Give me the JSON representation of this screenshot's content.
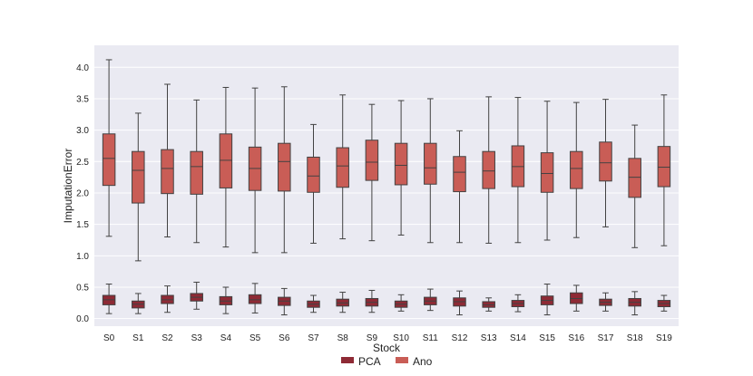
{
  "chart_data": {
    "type": "boxplot",
    "xlabel": "Stock",
    "ylabel": "ImputationError",
    "ylim": [
      -0.12,
      4.35
    ],
    "yticks": [
      0.0,
      0.5,
      1.0,
      1.5,
      2.0,
      2.5,
      3.0,
      3.5,
      4.0
    ],
    "ytick_labels": [
      "0.0",
      "0.5",
      "1.0",
      "1.5",
      "2.0",
      "2.5",
      "3.0",
      "3.5",
      "4.0"
    ],
    "grid": true,
    "legend_position": "bottom-center",
    "categories": [
      "S0",
      "S1",
      "S2",
      "S3",
      "S4",
      "S5",
      "S6",
      "S7",
      "S8",
      "S9",
      "S10",
      "S11",
      "S12",
      "S13",
      "S14",
      "S15",
      "S16",
      "S17",
      "S18",
      "S19"
    ],
    "series": [
      {
        "name": "PCA",
        "color": "#8e2a35",
        "boxes": [
          {
            "whislo": 0.08,
            "q1": 0.22,
            "med": 0.3,
            "q3": 0.37,
            "whishi": 0.55
          },
          {
            "whislo": 0.08,
            "q1": 0.17,
            "med": 0.23,
            "q3": 0.28,
            "whishi": 0.4
          },
          {
            "whislo": 0.1,
            "q1": 0.24,
            "med": 0.3,
            "q3": 0.37,
            "whishi": 0.52
          },
          {
            "whislo": 0.15,
            "q1": 0.28,
            "med": 0.34,
            "q3": 0.4,
            "whishi": 0.58
          },
          {
            "whislo": 0.08,
            "q1": 0.22,
            "med": 0.28,
            "q3": 0.35,
            "whishi": 0.5
          },
          {
            "whislo": 0.09,
            "q1": 0.24,
            "med": 0.3,
            "q3": 0.38,
            "whishi": 0.56
          },
          {
            "whislo": 0.06,
            "q1": 0.21,
            "med": 0.28,
            "q3": 0.34,
            "whishi": 0.48
          },
          {
            "whislo": 0.1,
            "q1": 0.18,
            "med": 0.23,
            "q3": 0.28,
            "whishi": 0.37
          },
          {
            "whislo": 0.1,
            "q1": 0.2,
            "med": 0.25,
            "q3": 0.31,
            "whishi": 0.42
          },
          {
            "whislo": 0.1,
            "q1": 0.2,
            "med": 0.26,
            "q3": 0.32,
            "whishi": 0.45
          },
          {
            "whislo": 0.12,
            "q1": 0.18,
            "med": 0.23,
            "q3": 0.28,
            "whishi": 0.38
          },
          {
            "whislo": 0.13,
            "q1": 0.22,
            "med": 0.28,
            "q3": 0.34,
            "whishi": 0.47
          },
          {
            "whislo": 0.06,
            "q1": 0.2,
            "med": 0.27,
            "q3": 0.33,
            "whishi": 0.44
          },
          {
            "whislo": 0.12,
            "q1": 0.18,
            "med": 0.22,
            "q3": 0.27,
            "whishi": 0.33
          },
          {
            "whislo": 0.11,
            "q1": 0.19,
            "med": 0.24,
            "q3": 0.29,
            "whishi": 0.38
          },
          {
            "whislo": 0.06,
            "q1": 0.22,
            "med": 0.29,
            "q3": 0.36,
            "whishi": 0.55
          },
          {
            "whislo": 0.12,
            "q1": 0.24,
            "med": 0.32,
            "q3": 0.41,
            "whishi": 0.53
          },
          {
            "whislo": 0.12,
            "q1": 0.21,
            "med": 0.26,
            "q3": 0.31,
            "whishi": 0.41
          },
          {
            "whislo": 0.06,
            "q1": 0.2,
            "med": 0.26,
            "q3": 0.32,
            "whishi": 0.43
          },
          {
            "whislo": 0.12,
            "q1": 0.19,
            "med": 0.24,
            "q3": 0.29,
            "whishi": 0.37
          }
        ]
      },
      {
        "name": "Ano",
        "color": "#c95d56",
        "boxes": [
          {
            "whislo": 1.31,
            "q1": 2.12,
            "med": 2.55,
            "q3": 2.94,
            "whishi": 4.12
          },
          {
            "whislo": 0.92,
            "q1": 1.84,
            "med": 2.36,
            "q3": 2.66,
            "whishi": 3.27
          },
          {
            "whislo": 1.3,
            "q1": 1.99,
            "med": 2.39,
            "q3": 2.69,
            "whishi": 3.73
          },
          {
            "whislo": 1.21,
            "q1": 1.98,
            "med": 2.42,
            "q3": 2.66,
            "whishi": 3.48
          },
          {
            "whislo": 1.14,
            "q1": 2.08,
            "med": 2.52,
            "q3": 2.94,
            "whishi": 3.68
          },
          {
            "whislo": 1.05,
            "q1": 2.04,
            "med": 2.39,
            "q3": 2.73,
            "whishi": 3.67
          },
          {
            "whislo": 1.05,
            "q1": 2.03,
            "med": 2.5,
            "q3": 2.79,
            "whishi": 3.69
          },
          {
            "whislo": 1.2,
            "q1": 2.01,
            "med": 2.27,
            "q3": 2.57,
            "whishi": 3.09
          },
          {
            "whislo": 1.27,
            "q1": 2.09,
            "med": 2.43,
            "q3": 2.72,
            "whishi": 3.56
          },
          {
            "whislo": 1.24,
            "q1": 2.2,
            "med": 2.49,
            "q3": 2.84,
            "whishi": 3.41
          },
          {
            "whislo": 1.33,
            "q1": 2.13,
            "med": 2.44,
            "q3": 2.79,
            "whishi": 3.47
          },
          {
            "whislo": 1.21,
            "q1": 2.14,
            "med": 2.4,
            "q3": 2.79,
            "whishi": 3.5
          },
          {
            "whislo": 1.21,
            "q1": 2.02,
            "med": 2.33,
            "q3": 2.58,
            "whishi": 2.99
          },
          {
            "whislo": 1.2,
            "q1": 2.07,
            "med": 2.35,
            "q3": 2.66,
            "whishi": 3.53
          },
          {
            "whislo": 1.21,
            "q1": 2.1,
            "med": 2.42,
            "q3": 2.75,
            "whishi": 3.52
          },
          {
            "whislo": 1.25,
            "q1": 2.01,
            "med": 2.31,
            "q3": 2.64,
            "whishi": 3.46
          },
          {
            "whislo": 1.29,
            "q1": 2.07,
            "med": 2.39,
            "q3": 2.66,
            "whishi": 3.44
          },
          {
            "whislo": 1.46,
            "q1": 2.19,
            "med": 2.48,
            "q3": 2.81,
            "whishi": 3.49
          },
          {
            "whislo": 1.13,
            "q1": 1.93,
            "med": 2.25,
            "q3": 2.55,
            "whishi": 3.08
          },
          {
            "whislo": 1.16,
            "q1": 2.1,
            "med": 2.41,
            "q3": 2.74,
            "whishi": 3.56
          }
        ]
      }
    ]
  }
}
